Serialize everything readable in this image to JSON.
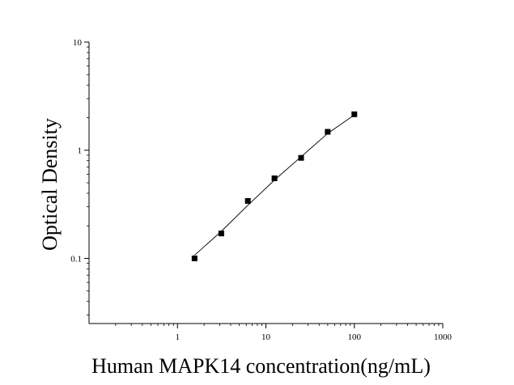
{
  "chart_data": {
    "type": "scatter",
    "xlabel": "Human MAPK14 concentration(ng/mL)",
    "ylabel": "Optical Density",
    "xscale": "log",
    "yscale": "log",
    "xlim": [
      0.1,
      1000
    ],
    "ylim": [
      0.025,
      10
    ],
    "x_ticks": [
      1,
      10,
      100,
      1000
    ],
    "x_tick_labels": [
      "1",
      "10",
      "100",
      "1000"
    ],
    "y_ticks": [
      0.1,
      1,
      10
    ],
    "y_tick_labels": [
      "0.1",
      "1",
      "10"
    ],
    "grid": false,
    "legend": "none",
    "series": [
      {
        "x": [
          1.56,
          3.13,
          6.25,
          12.5,
          25,
          50,
          100
        ],
        "y": [
          0.1,
          0.17,
          0.34,
          0.55,
          0.85,
          1.48,
          2.15
        ],
        "marker": "square",
        "color": "#000000"
      }
    ],
    "fit_line": {
      "x": [
        1.56,
        3.13,
        6.25,
        12.5,
        25,
        50,
        100
      ],
      "y": [
        0.107,
        0.178,
        0.31,
        0.53,
        0.87,
        1.43,
        2.12
      ]
    }
  }
}
